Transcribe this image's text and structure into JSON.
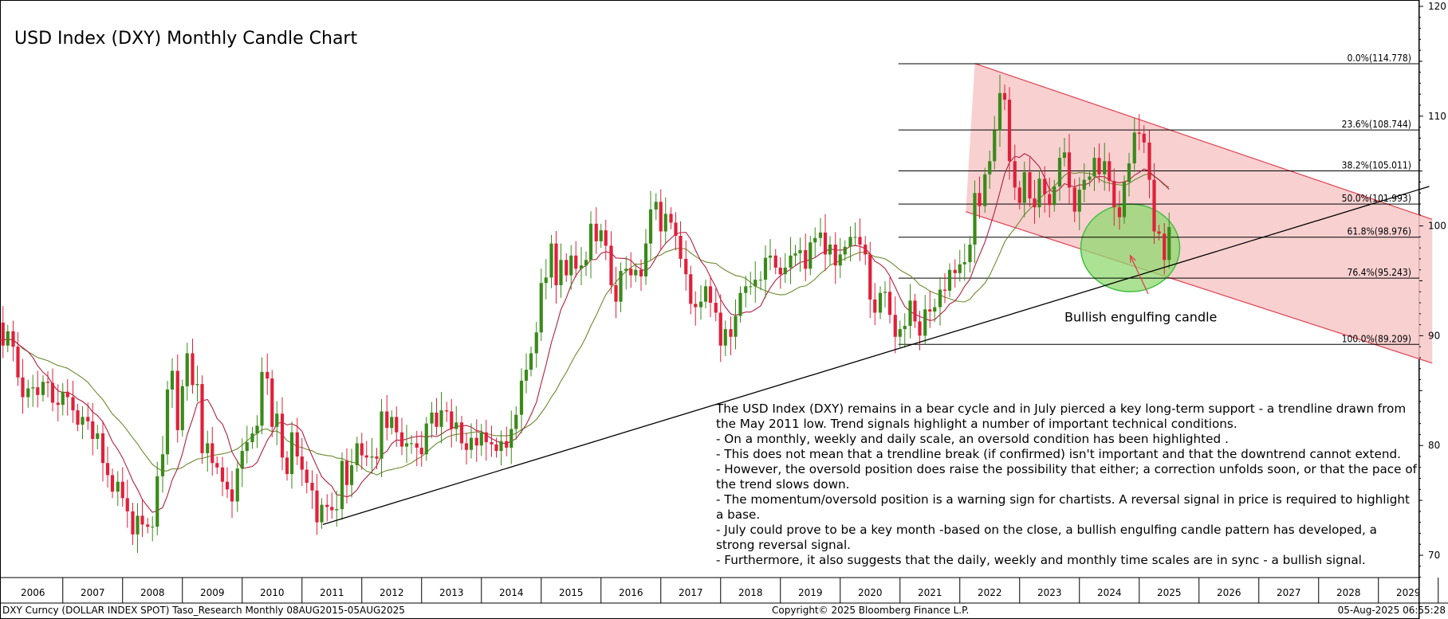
{
  "footer": {
    "left": "DXY Curncy (DOLLAR INDEX SPOT) Taso_Research  Monthly 08AUG2015-05AUG2025",
    "center": "Copyright© 2025 Bloomberg Finance L.P.",
    "right": "05-Aug-2025 06:55:28"
  },
  "commentary": [
    "The USD Index (DXY) remains in a bear cycle and in July pierced a key long-term support - a trendline drawn from the May 2011 low. Trend signals highlight a number of important technical conditions.",
    "- On a monthly, weekly and daily scale, an oversold condition has been highlighted .",
    "- This does not mean that a trendline break (if confirmed) isn't important and that the downtrend cannot extend.",
    "- However, the oversold position does raise the possibility that either; a correction unfolds soon, or that the pace of the trend slows down.",
    "- The momentum/oversold position is a warning sign for chartists. A reversal signal in price is required to highlight a base.",
    "- July could prove to be a key month -based on the close, a bullish engulfing candle pattern has developed, a strong reversal signal.",
    "- Furthermore, it also suggests that the daily, weekly and monthly time scales are in sync - a bullish signal."
  ],
  "chart_data": {
    "type": "candlestick",
    "title": "USD Index (DXY) Monthly Candle Chart",
    "xlabel": "",
    "ylabel": "",
    "y_scale": "linear",
    "ylim": [
      67.5,
      121.5
    ],
    "xlim": [
      2005.5,
      2029.9
    ],
    "grid": false,
    "y_ticks": [
      70,
      80,
      90,
      100,
      110,
      120
    ],
    "x_tick_labels": [
      "2006",
      "2007",
      "2008",
      "2009",
      "2010",
      "2011",
      "2012",
      "2013",
      "2014",
      "2015",
      "2016",
      "2017",
      "2018",
      "2019",
      "2020",
      "2021",
      "2022",
      "2023",
      "2024",
      "2025",
      "2026",
      "2027",
      "2028",
      "2029"
    ],
    "colors": {
      "up": "#3a8a1a",
      "down": "#e0203a",
      "ma_short": "#b02040",
      "ma_long": "#6a8a30",
      "channel_fill": "#f7c8c8",
      "channel_line": "#e04050",
      "circle_fill": "#90d870",
      "circle_stroke": "#40c040"
    },
    "candles_note": "approximate monthly closes 2005-2025, read from chart",
    "closes": [
      [
        2005.5,
        89.5
      ],
      [
        2005.58,
        87.3
      ],
      [
        2005.67,
        88.7
      ],
      [
        2005.75,
        89.9
      ],
      [
        2005.83,
        91.4
      ],
      [
        2005.92,
        91.2
      ],
      [
        2006.0,
        89.1
      ],
      [
        2006.08,
        90.4
      ],
      [
        2006.17,
        89.0
      ],
      [
        2006.25,
        86.2
      ],
      [
        2006.33,
        84.4
      ],
      [
        2006.42,
        85.2
      ],
      [
        2006.5,
        85.3
      ],
      [
        2006.58,
        84.6
      ],
      [
        2006.67,
        85.8
      ],
      [
        2006.75,
        85.7
      ],
      [
        2006.83,
        83.9
      ],
      [
        2006.92,
        83.7
      ],
      [
        2007.0,
        84.9
      ],
      [
        2007.08,
        84.4
      ],
      [
        2007.17,
        83.2
      ],
      [
        2007.25,
        81.9
      ],
      [
        2007.33,
        82.6
      ],
      [
        2007.42,
        82.2
      ],
      [
        2007.5,
        80.6
      ],
      [
        2007.58,
        81.1
      ],
      [
        2007.67,
        78.4
      ],
      [
        2007.75,
        77.3
      ],
      [
        2007.83,
        75.8
      ],
      [
        2007.92,
        76.7
      ],
      [
        2008.0,
        75.2
      ],
      [
        2008.08,
        74.0
      ],
      [
        2008.17,
        71.9
      ],
      [
        2008.25,
        73.6
      ],
      [
        2008.33,
        72.8
      ],
      [
        2008.42,
        72.6
      ],
      [
        2008.5,
        72.6
      ],
      [
        2008.58,
        77.2
      ],
      [
        2008.67,
        79.2
      ],
      [
        2008.75,
        85.1
      ],
      [
        2008.83,
        86.8
      ],
      [
        2008.92,
        81.4
      ],
      [
        2009.0,
        85.4
      ],
      [
        2009.08,
        88.4
      ],
      [
        2009.17,
        85.5
      ],
      [
        2009.25,
        85.6
      ],
      [
        2009.33,
        79.3
      ],
      [
        2009.42,
        80.2
      ],
      [
        2009.5,
        78.4
      ],
      [
        2009.58,
        78.0
      ],
      [
        2009.67,
        76.7
      ],
      [
        2009.75,
        76.0
      ],
      [
        2009.83,
        74.9
      ],
      [
        2009.92,
        77.9
      ],
      [
        2010.0,
        79.5
      ],
      [
        2010.08,
        80.3
      ],
      [
        2010.17,
        81.1
      ],
      [
        2010.25,
        81.8
      ],
      [
        2010.33,
        86.7
      ],
      [
        2010.42,
        86.1
      ],
      [
        2010.5,
        81.7
      ],
      [
        2010.58,
        82.9
      ],
      [
        2010.67,
        78.9
      ],
      [
        2010.75,
        77.4
      ],
      [
        2010.83,
        81.2
      ],
      [
        2010.92,
        79.0
      ],
      [
        2011.0,
        77.8
      ],
      [
        2011.08,
        76.6
      ],
      [
        2011.17,
        75.9
      ],
      [
        2011.25,
        73.0
      ],
      [
        2011.33,
        74.6
      ],
      [
        2011.42,
        74.4
      ],
      [
        2011.5,
        74.1
      ],
      [
        2011.58,
        74.2
      ],
      [
        2011.67,
        78.6
      ],
      [
        2011.75,
        76.4
      ],
      [
        2011.83,
        78.2
      ],
      [
        2011.92,
        80.2
      ],
      [
        2012.0,
        79.1
      ],
      [
        2012.08,
        78.9
      ],
      [
        2012.17,
        79.0
      ],
      [
        2012.25,
        78.8
      ],
      [
        2012.33,
        83.1
      ],
      [
        2012.42,
        81.6
      ],
      [
        2012.5,
        82.6
      ],
      [
        2012.58,
        81.2
      ],
      [
        2012.67,
        79.9
      ],
      [
        2012.75,
        80.2
      ],
      [
        2012.83,
        80.2
      ],
      [
        2012.92,
        79.8
      ],
      [
        2013.0,
        79.2
      ],
      [
        2013.08,
        82.0
      ],
      [
        2013.17,
        83.0
      ],
      [
        2013.25,
        81.7
      ],
      [
        2013.33,
        83.2
      ],
      [
        2013.42,
        83.1
      ],
      [
        2013.5,
        81.5
      ],
      [
        2013.58,
        82.1
      ],
      [
        2013.67,
        80.2
      ],
      [
        2013.75,
        79.6
      ],
      [
        2013.83,
        80.7
      ],
      [
        2013.92,
        80.0
      ],
      [
        2014.0,
        81.2
      ],
      [
        2014.08,
        80.3
      ],
      [
        2014.17,
        80.1
      ],
      [
        2014.25,
        79.5
      ],
      [
        2014.33,
        80.4
      ],
      [
        2014.42,
        79.8
      ],
      [
        2014.5,
        81.5
      ],
      [
        2014.58,
        82.8
      ],
      [
        2014.67,
        85.9
      ],
      [
        2014.75,
        86.9
      ],
      [
        2014.83,
        88.4
      ],
      [
        2014.92,
        90.3
      ],
      [
        2015.0,
        94.8
      ],
      [
        2015.08,
        95.3
      ],
      [
        2015.17,
        98.4
      ],
      [
        2015.25,
        94.6
      ],
      [
        2015.33,
        96.9
      ],
      [
        2015.42,
        95.5
      ],
      [
        2015.5,
        97.3
      ],
      [
        2015.58,
        96.1
      ],
      [
        2015.67,
        96.4
      ],
      [
        2015.75,
        96.9
      ],
      [
        2015.83,
        100.2
      ],
      [
        2015.92,
        98.6
      ],
      [
        2016.0,
        99.6
      ],
      [
        2016.08,
        98.2
      ],
      [
        2016.17,
        94.6
      ],
      [
        2016.25,
        93.1
      ],
      [
        2016.33,
        95.9
      ],
      [
        2016.42,
        96.1
      ],
      [
        2016.5,
        95.5
      ],
      [
        2016.58,
        96.0
      ],
      [
        2016.67,
        95.4
      ],
      [
        2016.75,
        98.4
      ],
      [
        2016.83,
        101.5
      ],
      [
        2016.92,
        102.2
      ],
      [
        2017.0,
        99.5
      ],
      [
        2017.08,
        101.1
      ],
      [
        2017.17,
        100.3
      ],
      [
        2017.25,
        99.1
      ],
      [
        2017.33,
        97.0
      ],
      [
        2017.42,
        95.6
      ],
      [
        2017.5,
        92.9
      ],
      [
        2017.58,
        92.6
      ],
      [
        2017.67,
        93.1
      ],
      [
        2017.75,
        94.5
      ],
      [
        2017.83,
        93.0
      ],
      [
        2017.92,
        92.1
      ],
      [
        2018.0,
        89.1
      ],
      [
        2018.08,
        90.6
      ],
      [
        2018.17,
        89.9
      ],
      [
        2018.25,
        91.8
      ],
      [
        2018.33,
        93.9
      ],
      [
        2018.42,
        94.5
      ],
      [
        2018.5,
        94.5
      ],
      [
        2018.58,
        95.1
      ],
      [
        2018.67,
        95.1
      ],
      [
        2018.75,
        97.1
      ],
      [
        2018.83,
        97.3
      ],
      [
        2018.92,
        96.2
      ],
      [
        2019.0,
        95.6
      ],
      [
        2019.08,
        96.2
      ],
      [
        2019.17,
        97.3
      ],
      [
        2019.25,
        97.5
      ],
      [
        2019.33,
        97.8
      ],
      [
        2019.42,
        96.1
      ],
      [
        2019.5,
        98.5
      ],
      [
        2019.58,
        98.9
      ],
      [
        2019.67,
        99.4
      ],
      [
        2019.75,
        97.4
      ],
      [
        2019.83,
        98.3
      ],
      [
        2019.92,
        96.4
      ],
      [
        2020.0,
        97.4
      ],
      [
        2020.08,
        98.1
      ],
      [
        2020.17,
        99.0
      ],
      [
        2020.25,
        99.0
      ],
      [
        2020.33,
        98.3
      ],
      [
        2020.42,
        97.4
      ],
      [
        2020.5,
        93.3
      ],
      [
        2020.58,
        92.1
      ],
      [
        2020.67,
        93.9
      ],
      [
        2020.75,
        94.0
      ],
      [
        2020.83,
        91.9
      ],
      [
        2020.92,
        89.9
      ],
      [
        2021.0,
        90.6
      ],
      [
        2021.08,
        90.9
      ],
      [
        2021.17,
        93.2
      ],
      [
        2021.25,
        91.3
      ],
      [
        2021.33,
        90.0
      ],
      [
        2021.42,
        92.4
      ],
      [
        2021.5,
        92.2
      ],
      [
        2021.58,
        92.6
      ],
      [
        2021.67,
        94.2
      ],
      [
        2021.75,
        94.1
      ],
      [
        2021.83,
        96.0
      ],
      [
        2021.92,
        95.7
      ],
      [
        2022.0,
        96.5
      ],
      [
        2022.08,
        96.7
      ],
      [
        2022.17,
        98.3
      ],
      [
        2022.25,
        103.0
      ],
      [
        2022.33,
        101.8
      ],
      [
        2022.42,
        104.7
      ],
      [
        2022.5,
        105.9
      ],
      [
        2022.58,
        108.7
      ],
      [
        2022.67,
        112.1
      ],
      [
        2022.75,
        111.5
      ],
      [
        2022.83,
        105.9
      ],
      [
        2022.92,
        103.5
      ],
      [
        2023.0,
        102.1
      ],
      [
        2023.08,
        104.9
      ],
      [
        2023.17,
        102.5
      ],
      [
        2023.25,
        101.7
      ],
      [
        2023.33,
        104.3
      ],
      [
        2023.42,
        102.9
      ],
      [
        2023.5,
        101.9
      ],
      [
        2023.58,
        103.6
      ],
      [
        2023.67,
        106.2
      ],
      [
        2023.75,
        106.7
      ],
      [
        2023.83,
        103.5
      ],
      [
        2023.92,
        101.3
      ],
      [
        2024.0,
        103.3
      ],
      [
        2024.08,
        104.2
      ],
      [
        2024.17,
        104.5
      ],
      [
        2024.25,
        106.2
      ],
      [
        2024.33,
        104.7
      ],
      [
        2024.42,
        105.9
      ],
      [
        2024.5,
        104.1
      ],
      [
        2024.58,
        101.7
      ],
      [
        2024.67,
        100.8
      ],
      [
        2024.75,
        104.0
      ],
      [
        2024.83,
        105.7
      ],
      [
        2024.92,
        108.5
      ],
      [
        2025.0,
        108.4
      ],
      [
        2025.08,
        107.6
      ],
      [
        2025.17,
        104.2
      ],
      [
        2025.25,
        99.5
      ],
      [
        2025.33,
        99.3
      ],
      [
        2025.42,
        96.9
      ],
      [
        2025.5,
        99.9
      ]
    ],
    "fibonacci_levels": [
      {
        "label": "0.0%(114.778)",
        "value": 114.778
      },
      {
        "label": "23.6%(108.744)",
        "value": 108.744
      },
      {
        "label": "38.2%(105.011)",
        "value": 105.011
      },
      {
        "label": "50.0%(101.993)",
        "value": 101.993
      },
      {
        "label": "61.8%(98.976)",
        "value": 98.976
      },
      {
        "label": "76.4%(95.243)",
        "value": 95.243
      },
      {
        "label": "100.0%(89.209)",
        "value": 89.209
      }
    ],
    "fib_start_x": 2021.0,
    "trendline": {
      "x1": 2011.35,
      "y1": 72.8,
      "x2": 2029.85,
      "y2": 103.6
    },
    "channel": {
      "upper": {
        "x1": 2022.25,
        "y1": 114.8,
        "x2": 2029.9,
        "y2": 100.6
      },
      "lower": {
        "x1": 2022.1,
        "y1": 101.3,
        "x2": 2029.9,
        "y2": 87.5
      }
    },
    "highlight_circle": {
      "cx": 2024.85,
      "cy": 98.0,
      "label": ""
    },
    "annotations": [
      {
        "text": "Bullish engulfing candle",
        "x": 2023.75,
        "y": 91.3,
        "arrow_from": [
          2025.15,
          93.8
        ],
        "arrow_to": [
          2024.85,
          97.3
        ]
      }
    ]
  }
}
